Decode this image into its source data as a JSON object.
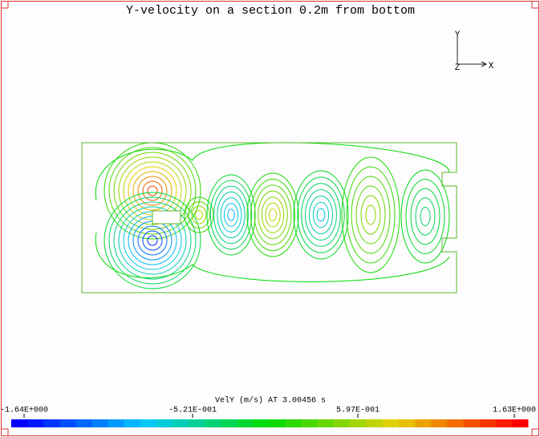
{
  "title": "Y-velocity on a section 0.2m from bottom",
  "triad": {
    "y": "Y",
    "z": "Z",
    "x": "X"
  },
  "colorbar": {
    "label": "VelY (m/s) AT 3.00456 s",
    "ticks": [
      "-1.64E+000",
      "-5.21E-001",
      "5.97E-001",
      "1.63E+000"
    ]
  }
}
